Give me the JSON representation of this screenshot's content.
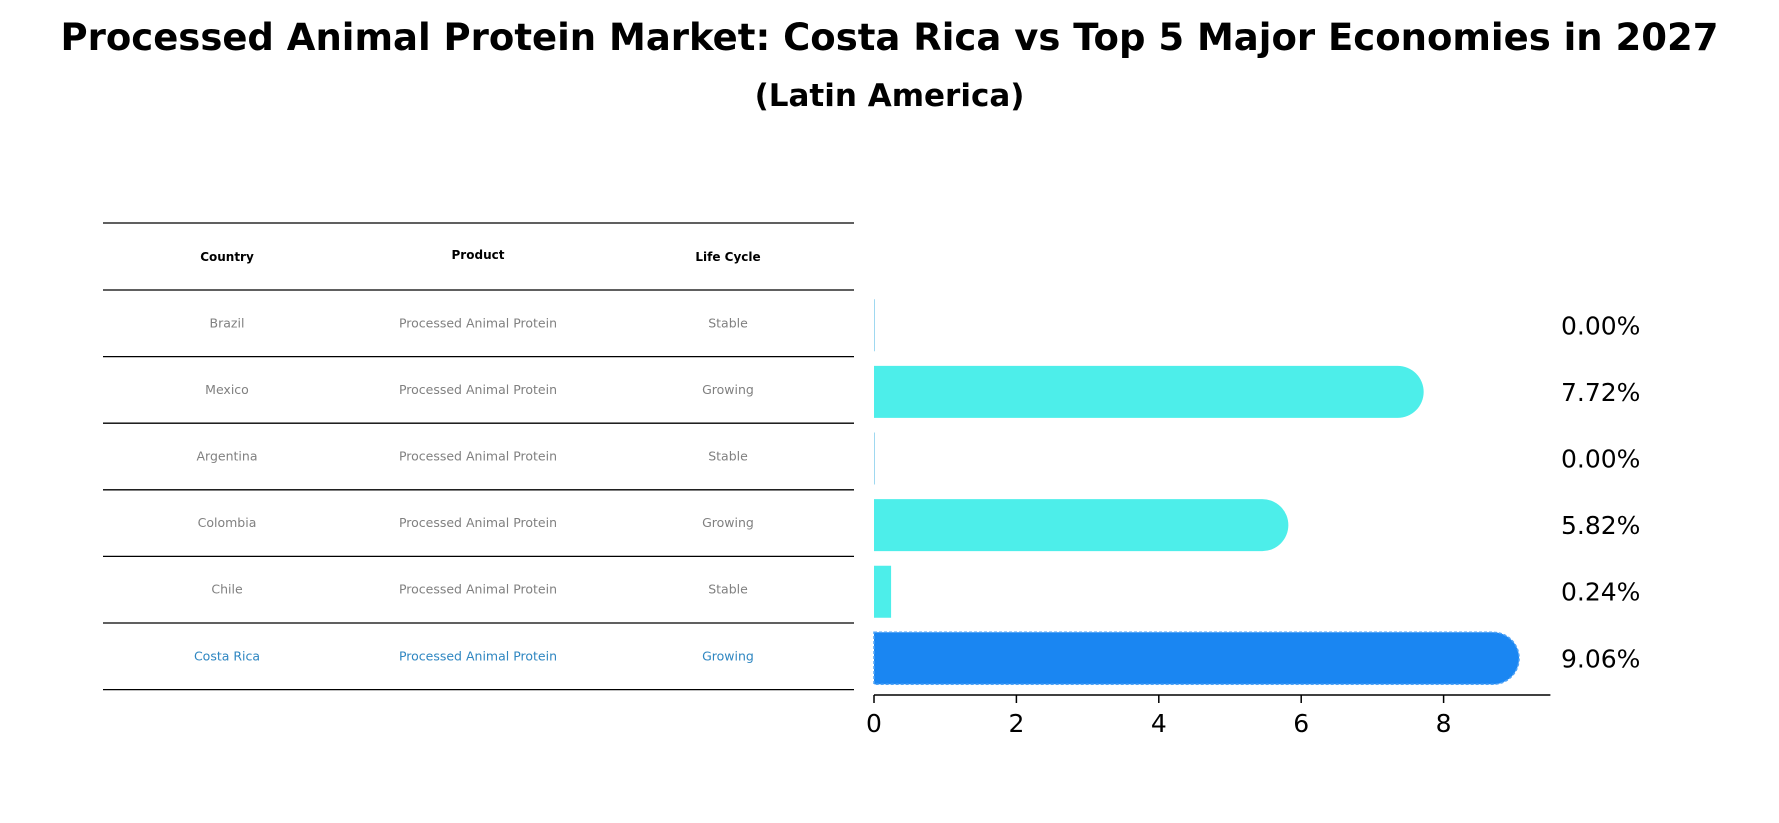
{
  "chart_data": {
    "type": "bar",
    "orientation": "horizontal",
    "title": "Processed Animal Protein Market: Costa Rica vs Top 5 Major Economies in 2027",
    "subtitle": "(Latin America)",
    "table": {
      "columns": [
        "Country",
        "Product",
        "Life Cycle"
      ],
      "rows": [
        {
          "country": "Brazil",
          "product": "Processed Animal Protein",
          "life_cycle": "Stable",
          "highlight": false
        },
        {
          "country": "Mexico",
          "product": "Processed Animal Protein",
          "life_cycle": "Growing",
          "highlight": false
        },
        {
          "country": "Argentina",
          "product": "Processed Animal Protein",
          "life_cycle": "Stable",
          "highlight": false
        },
        {
          "country": "Colombia",
          "product": "Processed Animal Protein",
          "life_cycle": "Growing",
          "highlight": false
        },
        {
          "country": "Chile",
          "product": "Processed Animal Protein",
          "life_cycle": "Stable",
          "highlight": false
        },
        {
          "country": "Costa Rica",
          "product": "Processed Animal Protein",
          "life_cycle": "Growing",
          "highlight": true
        }
      ]
    },
    "categories": [
      "Brazil",
      "Mexico",
      "Argentina",
      "Colombia",
      "Chile",
      "Costa Rica"
    ],
    "values": [
      0.0,
      7.72,
      0.0,
      5.82,
      0.24,
      9.06
    ],
    "value_labels": [
      "0.00%",
      "7.72%",
      "0.00%",
      "5.82%",
      "0.24%",
      "9.06%"
    ],
    "xlim": [
      0,
      9.5
    ],
    "xticks": [
      0,
      2,
      4,
      6,
      8
    ],
    "xtick_labels": [
      "0",
      "2",
      "4",
      "6",
      "8"
    ],
    "colors": {
      "bar": "#4DEEEA",
      "highlight_bar": "#1A86F2",
      "text_muted": "#808080",
      "text_highlight": "#2E86C1",
      "rule": "#000000"
    }
  }
}
